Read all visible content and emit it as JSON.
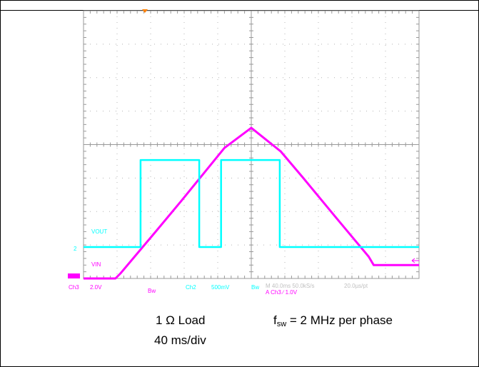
{
  "colors": {
    "ch3": "#ff00ff",
    "ch2": "#00ffff",
    "grid": "#b4b4b4",
    "grid_label": "#00c8ff",
    "trigger": "#ff8000"
  },
  "scope": {
    "vout_label": "VOUT",
    "vin_label": "VIN",
    "ch2_marker": "2",
    "ch3_marker": "3",
    "bottom": {
      "ch3": "Ch3",
      "ch3_scale": "2.0V",
      "bw1": "Bw",
      "ch2": "Ch2",
      "ch2_scale": "500mV",
      "bw2": "Bw",
      "timebase": "M 40.0ms 50.0kS/s",
      "point_interval": "20.0µs/pt",
      "trigger": "A  Ch3  ∕  1.0V"
    }
  },
  "caption": {
    "load_prefix": "1 Ω Load",
    "fsw_f": "f",
    "fsw_sub": "sw",
    "fsw_rest": " = 2 MHz per phase",
    "timebase": "40 ms/div"
  },
  "chart_data": [
    {
      "type": "line",
      "title": "",
      "xlabel": "",
      "ylabel": "",
      "x_unit": "ms",
      "x_per_div": 40,
      "x_divisions": 10,
      "xlim": [
        0,
        400
      ],
      "grid": true,
      "series": [
        {
          "name": "VIN",
          "channel": "Ch3",
          "volts_per_div": 2.0,
          "x": [
            0,
            38,
            44,
            86,
            116,
            168,
            200,
            235,
            262,
            300,
            340,
            346,
            400
          ],
          "y": [
            0.0,
            0.0,
            0.3,
            2.8,
            4.6,
            7.8,
            9.0,
            7.6,
            6.0,
            3.7,
            1.3,
            0.8,
            0.8
          ]
        },
        {
          "name": "VOUT",
          "channel": "Ch2",
          "volts_per_div": 0.5,
          "x": [
            0,
            68,
            68,
            138,
            138,
            164,
            164,
            234,
            234,
            400
          ],
          "y": [
            0.0,
            0.0,
            1.3,
            1.3,
            0.0,
            0.0,
            1.3,
            1.3,
            0.0,
            0.0
          ]
        }
      ]
    }
  ]
}
